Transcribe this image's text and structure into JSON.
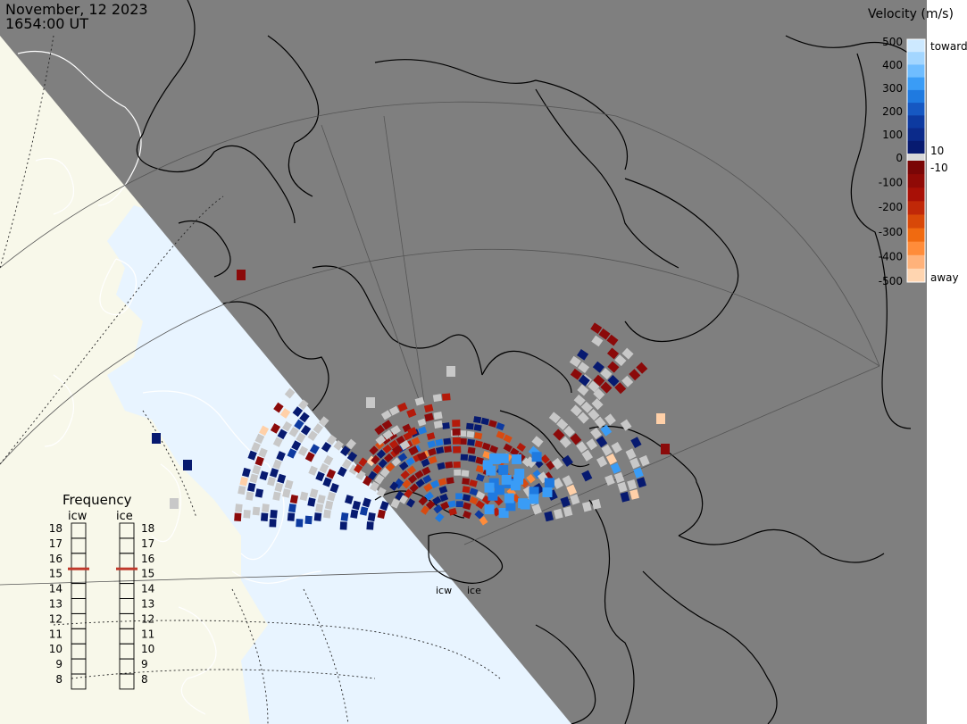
{
  "header": {
    "date": "November, 12 2023",
    "time": "1654:00 UT"
  },
  "colors": {
    "night": "#7f7f7f",
    "day_land": "#f8f8ea",
    "day_ocean": "#e8f4ff",
    "coast_day": "#ffffff",
    "coast": "#000000",
    "ground_scatter": "#c8c8c8"
  },
  "legend": {
    "title": "Velocity (m/s)",
    "toward_label": "toward",
    "away_label": "away",
    "ticks": [
      {
        "value": 500,
        "label": "500"
      },
      {
        "value": 400,
        "label": "400"
      },
      {
        "value": 300,
        "label": "300"
      },
      {
        "value": 200,
        "label": "200"
      },
      {
        "value": 100,
        "label": "100"
      },
      {
        "value": 0,
        "label": "0"
      },
      {
        "value": -100,
        "label": "-100"
      },
      {
        "value": -200,
        "label": "-200"
      },
      {
        "value": -300,
        "label": "-300"
      },
      {
        "value": -400,
        "label": "-400"
      },
      {
        "value": -500,
        "label": "-500"
      }
    ],
    "side_labels": [
      {
        "value": 10,
        "label": "10"
      },
      {
        "value": -10,
        "label": "-10"
      }
    ],
    "toward_colors": [
      "#cde9ff",
      "#a3d6ff",
      "#6fbdff",
      "#3a9cf6",
      "#1f7ae0",
      "#1658c2",
      "#0d3aa0",
      "#0b2a8a",
      "#071a70"
    ],
    "away_colors": [
      "#ffd5b0",
      "#ffb27a",
      "#ff8c3a",
      "#f06a10",
      "#d84808",
      "#c02808",
      "#a81006",
      "#900a06",
      "#7a0606"
    ]
  },
  "frequency": {
    "title": "Frequency",
    "radars": [
      {
        "name": "icw",
        "selected_mhz": 15
      },
      {
        "name": "ice",
        "selected_mhz": 15
      }
    ],
    "scale": [
      "18",
      "17",
      "16",
      "15",
      "14",
      "13",
      "12",
      "11",
      "10",
      "9",
      "8"
    ]
  },
  "sites": [
    {
      "name": "icw"
    },
    {
      "name": "ice"
    }
  ]
}
